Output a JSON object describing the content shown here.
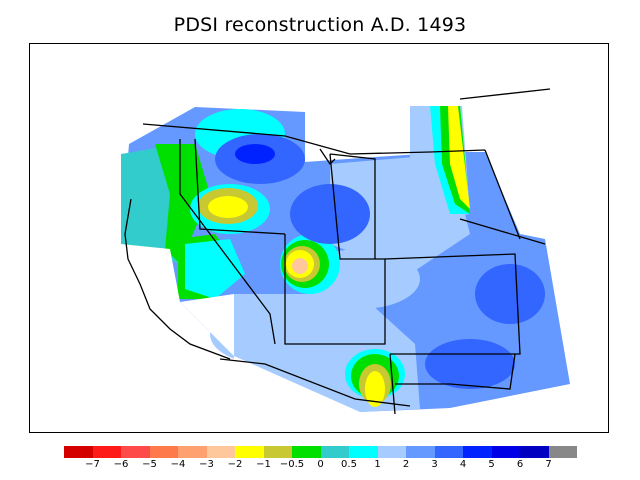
{
  "title": "PDSI reconstruction A.D. 1493",
  "legend": {
    "colors": [
      "#d40000",
      "#ff1a1a",
      "#ff4a4a",
      "#ff7a4a",
      "#ffa070",
      "#ffc89c",
      "#ffff00",
      "#c8c832",
      "#00e000",
      "#33cccc",
      "#00ffff",
      "#a6ccff",
      "#6699ff",
      "#3366ff",
      "#0022ff",
      "#0000e6",
      "#0000c0",
      "#888888"
    ],
    "ticks": [
      "−7",
      "−6",
      "−5",
      "−4",
      "−3",
      "−2",
      "−1",
      "−0.5",
      "0",
      "0.5",
      "1",
      "2",
      "3",
      "4",
      "5",
      "6",
      "7"
    ]
  },
  "colors": {
    "base": "#6699ff",
    "light_blue": "#a6ccff",
    "mid_blue": "#3366ff",
    "deep_blue": "#0022ff",
    "cyan": "#00ffff",
    "teal": "#33cccc",
    "green": "#00e000",
    "olive": "#c8c832",
    "yellow": "#ffff00",
    "peach": "#ffc89c"
  }
}
